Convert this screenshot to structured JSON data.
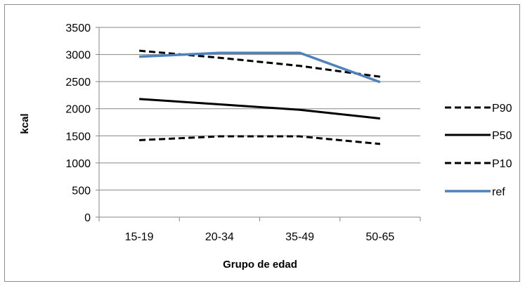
{
  "colors": {
    "p90": "#000000",
    "p50": "#000000",
    "p10": "#000000",
    "ref": "#4f81bd",
    "grid": "#868686",
    "axis": "#868686",
    "frame": "#8c8c8c"
  },
  "chart_data": {
    "type": "line",
    "title": "",
    "xlabel": "Grupo de edad",
    "ylabel": "kcal",
    "categories": [
      "15-19",
      "20-34",
      "35-49",
      "50-65"
    ],
    "ylim": [
      0,
      3500
    ],
    "yticks": [
      0,
      500,
      1000,
      1500,
      2000,
      2500,
      3000,
      3500
    ],
    "grid": "horizontal",
    "legend_position": "right",
    "series": [
      {
        "name": "P90",
        "values": [
          3070,
          2940,
          2790,
          2590
        ],
        "style": "dashed",
        "color": "#000000"
      },
      {
        "name": "P50",
        "values": [
          2180,
          2080,
          1980,
          1820
        ],
        "style": "solid",
        "color": "#000000"
      },
      {
        "name": "P10",
        "values": [
          1420,
          1490,
          1490,
          1350
        ],
        "style": "dashed",
        "color": "#000000"
      },
      {
        "name": "ref",
        "values": [
          2960,
          3030,
          3030,
          2490
        ],
        "style": "solid",
        "color": "#4f81bd"
      }
    ]
  }
}
